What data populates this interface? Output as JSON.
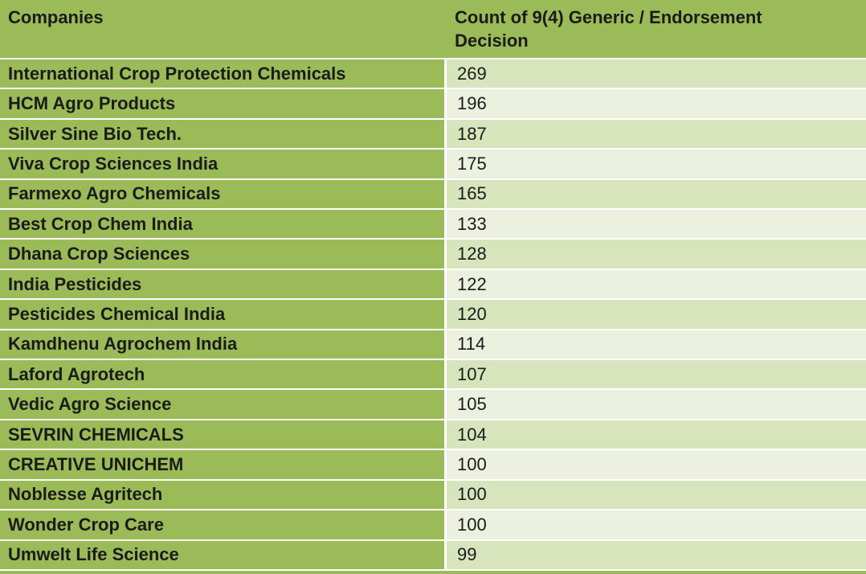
{
  "colors": {
    "green": "#9bbb59",
    "band_dark": "#d7e4bc",
    "band_light": "#ebf1de",
    "divider": "#ffffff",
    "text": "#1b1b1b"
  },
  "chart_data": {
    "type": "table",
    "title": "Count of 9(4) Generic / Endorsement Decision by Company",
    "columns": [
      "Companies",
      "Count of 9(4) Generic / Endorsement Decision"
    ],
    "rows": [
      [
        "International Crop Protection Chemicals",
        269
      ],
      [
        "HCM Agro Products",
        196
      ],
      [
        "Silver Sine Bio Tech.",
        187
      ],
      [
        "Viva Crop Sciences India",
        175
      ],
      [
        "Farmexo Agro Chemicals",
        165
      ],
      [
        "Best Crop Chem India",
        133
      ],
      [
        "Dhana Crop Sciences",
        128
      ],
      [
        "India Pesticides",
        122
      ],
      [
        "Pesticides Chemical India",
        120
      ],
      [
        "Kamdhenu Agrochem India",
        114
      ],
      [
        "Laford Agrotech",
        107
      ],
      [
        "Vedic Agro Science",
        105
      ],
      [
        "SEVRIN CHEMICALS",
        104
      ],
      [
        "CREATIVE UNICHEM",
        100
      ],
      [
        "Noblesse Agritech",
        100
      ],
      [
        "Wonder Crop Care",
        100
      ],
      [
        "Umwelt Life Science",
        99
      ]
    ]
  }
}
